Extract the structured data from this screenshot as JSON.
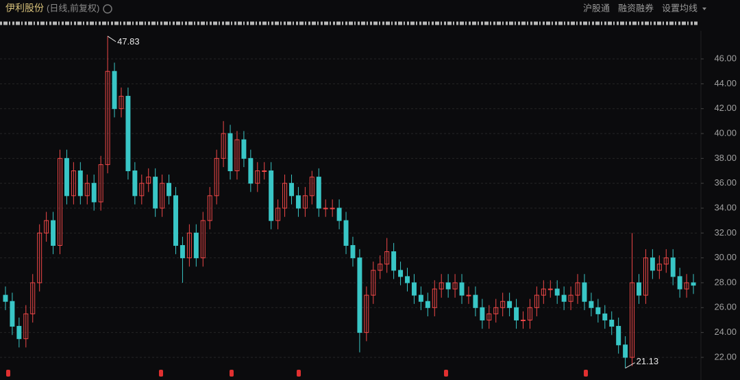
{
  "chart_data": {
    "type": "candlestick",
    "title": "伊利股份",
    "subtitle": "(日线,前复权)",
    "toolbar": [
      "沪股通",
      "融资融券",
      "设置均线"
    ],
    "up_color": "#f04848",
    "down_color": "#39c6c6",
    "grid": true,
    "ylim": [
      20.18,
      48.26
    ],
    "yticks": [
      {
        "value": 22,
        "label": "22.00"
      },
      {
        "value": 24,
        "label": "24.00"
      },
      {
        "value": 26,
        "label": "26.00"
      },
      {
        "value": 28,
        "label": "28.00"
      },
      {
        "value": 30,
        "label": "30.00"
      },
      {
        "value": 32,
        "label": "32.00"
      },
      {
        "value": 34,
        "label": "34.00"
      },
      {
        "value": 36,
        "label": "36.00"
      },
      {
        "value": 38,
        "label": "38.00"
      },
      {
        "value": 40,
        "label": "40.00"
      },
      {
        "value": 42,
        "label": "42.00"
      },
      {
        "value": 44,
        "label": "44.00"
      },
      {
        "value": 46,
        "label": "46.00"
      }
    ],
    "open": [
      27,
      26.5,
      24.5,
      23.5,
      25.5,
      28,
      32,
      33,
      31,
      38,
      35,
      37,
      35,
      36,
      34.5,
      37.5,
      45,
      42,
      43,
      37,
      35,
      36,
      36.5,
      34,
      36,
      35,
      31,
      30,
      32,
      30,
      33,
      35,
      38,
      40,
      37,
      39.5,
      38,
      36,
      37,
      37,
      33,
      34,
      36,
      35,
      34,
      35,
      36.5,
      34,
      34,
      34,
      33,
      31,
      30,
      24,
      27,
      29,
      29.5,
      30.5,
      29,
      28.5,
      28,
      27,
      26.5,
      26,
      27.5,
      28,
      27.5,
      28,
      27,
      27,
      26,
      25,
      25.5,
      26,
      26.5,
      26,
      25,
      25,
      26,
      27,
      27.5,
      27.5,
      27,
      26.5,
      27,
      28,
      26.5,
      26,
      25.5,
      25,
      24.5,
      23,
      22,
      28,
      27,
      30,
      29,
      29.5,
      30,
      28.5,
      27.5,
      28
    ],
    "high": [
      27.7,
      27.2,
      25.2,
      26.2,
      28.7,
      32.7,
      33.7,
      33.7,
      38.7,
      38.7,
      37.7,
      37.7,
      36.7,
      36.7,
      38.2,
      47.83,
      45.7,
      43.7,
      43.7,
      37.7,
      36.7,
      37.2,
      37.2,
      36.7,
      36.7,
      35.7,
      31.7,
      32.7,
      32.7,
      33.7,
      35.7,
      38.7,
      41,
      40.7,
      40.2,
      40.2,
      38.7,
      37.7,
      37.7,
      37.7,
      34.7,
      36.7,
      36.7,
      35.7,
      35.7,
      37,
      37.2,
      34.7,
      34.7,
      34.7,
      33.7,
      31.7,
      30.7,
      27.7,
      29.7,
      30.2,
      31.6,
      31.2,
      29.7,
      29.2,
      28.7,
      27.7,
      27.2,
      28.2,
      28.7,
      28.7,
      28.7,
      28.7,
      27.7,
      27.7,
      26.7,
      26.2,
      26.7,
      27.2,
      27.2,
      26.7,
      25.7,
      26.7,
      27.7,
      28.2,
      28.2,
      28.2,
      27.7,
      27.7,
      28.7,
      28.7,
      27.2,
      26.7,
      26.2,
      25.7,
      25.2,
      23.7,
      32,
      28.7,
      30.7,
      30.7,
      30.2,
      30.7,
      30.7,
      29.2,
      28.7,
      28.7
    ],
    "low": [
      25.8,
      23.8,
      22.8,
      22.8,
      24.8,
      27.3,
      31.3,
      30.3,
      30.3,
      34.3,
      34.3,
      34.3,
      34.3,
      33.8,
      33.8,
      36.8,
      41.3,
      41.3,
      36.3,
      34.3,
      34.3,
      35.3,
      33.3,
      33.3,
      34.3,
      30.3,
      28,
      29.3,
      29.3,
      29.3,
      32.3,
      34.3,
      37.3,
      36.3,
      36.3,
      37.3,
      35.3,
      35.3,
      36.3,
      32.3,
      32.3,
      33.3,
      34.3,
      33.3,
      33.3,
      34.3,
      33.3,
      33.3,
      33.3,
      32.3,
      30.3,
      29.3,
      22.4,
      23.3,
      26.3,
      28.3,
      28.8,
      28.3,
      27.8,
      27.3,
      26.3,
      25.8,
      25.3,
      25.3,
      26.8,
      26.8,
      26.8,
      26.3,
      26.3,
      25.3,
      24.3,
      24.3,
      24.8,
      25.3,
      25.3,
      24.3,
      24.3,
      24.3,
      25.3,
      26.3,
      26.8,
      26.3,
      25.8,
      25.8,
      26.3,
      25.8,
      25.3,
      24.8,
      24.3,
      23.8,
      22.3,
      21.13,
      21.3,
      26.3,
      26.3,
      28.3,
      28.3,
      28.8,
      27.8,
      26.8,
      26.8,
      27.1
    ],
    "close": [
      26.5,
      24.5,
      23.5,
      25.5,
      28,
      32,
      33,
      31,
      38,
      35,
      37,
      35,
      36,
      34.5,
      37.5,
      45,
      42,
      43,
      37,
      35,
      36,
      36.5,
      34,
      36,
      35,
      31,
      30,
      32,
      30,
      33,
      35,
      38,
      40,
      37,
      39.5,
      38,
      36,
      37,
      37,
      33,
      34,
      36,
      35,
      34,
      35,
      36.5,
      34,
      34,
      34,
      33,
      31,
      30,
      24,
      27,
      29,
      29.5,
      30.5,
      29,
      28.5,
      28,
      27,
      26.5,
      26,
      27.5,
      28,
      27.5,
      28,
      27,
      27,
      26,
      25,
      25.5,
      26,
      26.5,
      26,
      25,
      25,
      26,
      27,
      27.5,
      27.5,
      27,
      26.5,
      27,
      28,
      26.5,
      26,
      25.5,
      25,
      24.5,
      23,
      22,
      28,
      27,
      30,
      29,
      29.5,
      30,
      28.5,
      27.5,
      28,
      27.8
    ]
  }
}
